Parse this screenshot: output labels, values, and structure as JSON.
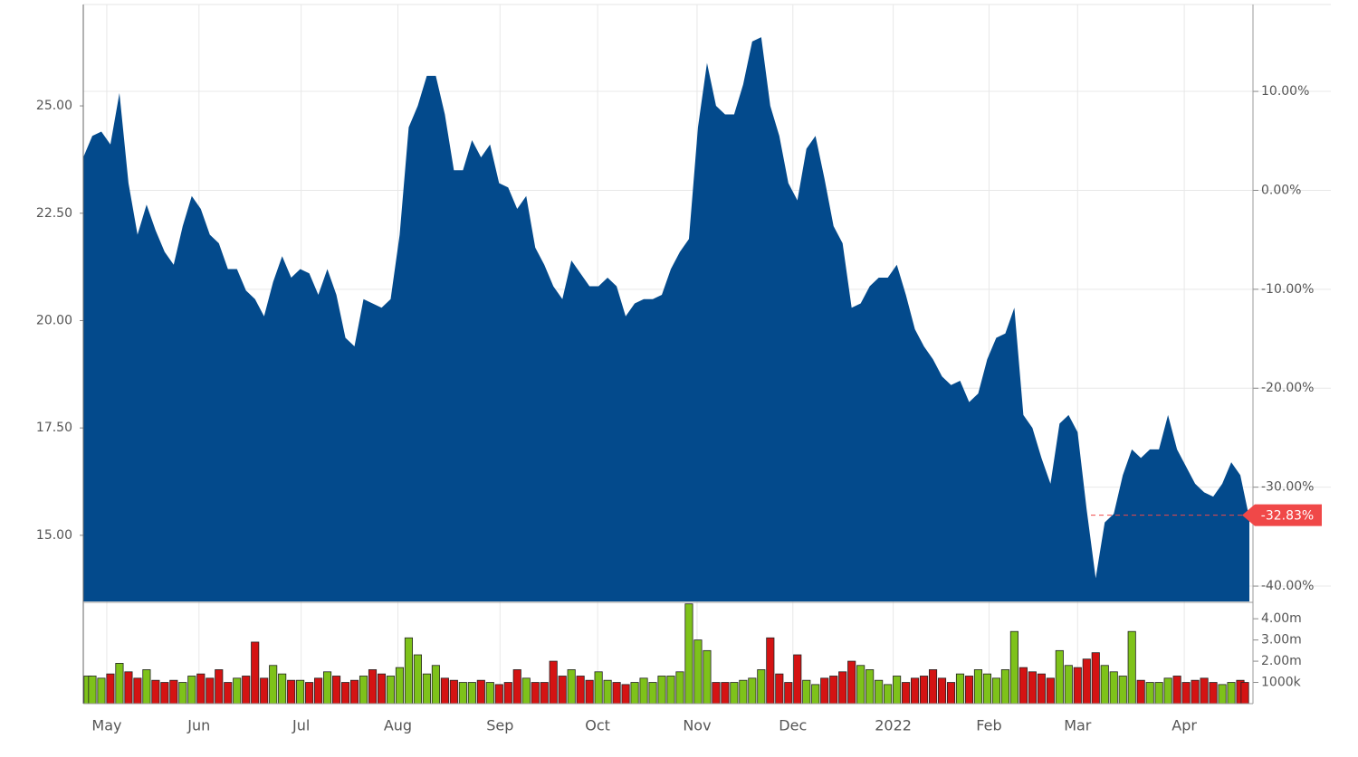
{
  "chart_data": [
    {
      "type": "area",
      "color": "#034a8c",
      "x": [
        0,
        1,
        2,
        3,
        4,
        5,
        6,
        7,
        8,
        9,
        10,
        11,
        12,
        13,
        14,
        15,
        16,
        17,
        18,
        19,
        20,
        21,
        22,
        23,
        24,
        25,
        26,
        27,
        28,
        29,
        30,
        31,
        32,
        33,
        34,
        35,
        36,
        37,
        38,
        39,
        40,
        41,
        42,
        43,
        44,
        45,
        46,
        47,
        48,
        49,
        50,
        51,
        52,
        53,
        54,
        55,
        56,
        57,
        58,
        59,
        60,
        61,
        62,
        63,
        64,
        65,
        66,
        67,
        68,
        69,
        70,
        71,
        72,
        73,
        74,
        75,
        76,
        77,
        78,
        79,
        80,
        81,
        82,
        83,
        84,
        85,
        86,
        87,
        88,
        89,
        90,
        91,
        92,
        93,
        94,
        95,
        96,
        97,
        98,
        99,
        100,
        101,
        102,
        103,
        104,
        105,
        106,
        107,
        108,
        109,
        110,
        111,
        112,
        113,
        114,
        115,
        116,
        117,
        118,
        119,
        120,
        121,
        122,
        123,
        124,
        125,
        126,
        127,
        128,
        129
      ],
      "series": [
        {
          "values": [
            23.8,
            24.3,
            24.4,
            24.1,
            25.3,
            23.2,
            22.0,
            22.7,
            22.1,
            21.6,
            21.3,
            22.2,
            22.9,
            22.6,
            22.0,
            21.8,
            21.2,
            21.2,
            20.7,
            20.5,
            20.1,
            20.9,
            21.5,
            21.0,
            21.2,
            21.1,
            20.6,
            21.2,
            20.6,
            19.6,
            19.4,
            20.5,
            20.4,
            20.3,
            20.5,
            22.0,
            24.5,
            25.0,
            25.7,
            25.7,
            24.8,
            23.5,
            23.5,
            24.2,
            23.8,
            24.1,
            23.2,
            23.1,
            22.6,
            22.9,
            21.7,
            21.3,
            20.8,
            20.5,
            21.4,
            21.1,
            20.8,
            20.8,
            21.0,
            20.8,
            20.1,
            20.4,
            20.5,
            20.5,
            20.6,
            21.2,
            21.6,
            21.9,
            24.5,
            26.0,
            25.0,
            24.8,
            24.8,
            25.5,
            26.5,
            26.6,
            25.0,
            24.3,
            23.2,
            22.8,
            24.0,
            24.3,
            23.3,
            22.2,
            21.8,
            20.3,
            20.4,
            20.8,
            21.0,
            21.0,
            21.3,
            20.6,
            19.8,
            19.4,
            19.1,
            18.7,
            18.5,
            18.6,
            18.1,
            18.3,
            19.1,
            19.6,
            19.7,
            20.3,
            17.8,
            17.5,
            16.8,
            16.2,
            17.6,
            17.8,
            17.4,
            15.6,
            14.0,
            15.3,
            15.5,
            16.4,
            17.0,
            16.8,
            17.0,
            17.0,
            17.8,
            17.0,
            16.6,
            16.2,
            16.0,
            15.9,
            16.2,
            16.7,
            16.4,
            15.4
          ]
        }
      ],
      "xlim": [
        0,
        129
      ],
      "ylim": [
        13.46,
        27.36
      ],
      "yticks": [
        {
          "value": 15,
          "label": "15.00"
        },
        {
          "value": 17.5,
          "label": "17.50"
        },
        {
          "value": 20,
          "label": "20.00"
        },
        {
          "value": 22.5,
          "label": "22.50"
        },
        {
          "value": 25,
          "label": "25.00"
        }
      ],
      "y2lim": [
        -41.55,
        18.78
      ],
      "y2ticks": [
        {
          "value": 10,
          "label": "10.00%"
        },
        {
          "value": 0,
          "label": "0.00%"
        },
        {
          "value": -10,
          "label": "-10.00%"
        },
        {
          "value": -20,
          "label": "-20.00%"
        },
        {
          "value": -30,
          "label": "-30.00%"
        },
        {
          "value": -40,
          "label": "-40.00%"
        }
      ],
      "last_change": {
        "value": -32.83,
        "label": "-32.83%"
      },
      "grid": true
    },
    {
      "type": "bar",
      "up_color": "#7ec21a",
      "down_color": "#d41313",
      "x": [
        0,
        1,
        2,
        3,
        4,
        5,
        6,
        7,
        8,
        9,
        10,
        11,
        12,
        13,
        14,
        15,
        16,
        17,
        18,
        19,
        20,
        21,
        22,
        23,
        24,
        25,
        26,
        27,
        28,
        29,
        30,
        31,
        32,
        33,
        34,
        35,
        36,
        37,
        38,
        39,
        40,
        41,
        42,
        43,
        44,
        45,
        46,
        47,
        48,
        49,
        50,
        51,
        52,
        53,
        54,
        55,
        56,
        57,
        58,
        59,
        60,
        61,
        62,
        63,
        64,
        65,
        66,
        67,
        68,
        69,
        70,
        71,
        72,
        73,
        74,
        75,
        76,
        77,
        78,
        79,
        80,
        81,
        82,
        83,
        84,
        85,
        86,
        87,
        88,
        89,
        90,
        91,
        92,
        93,
        94,
        95,
        96,
        97,
        98,
        99,
        100,
        101,
        102,
        103,
        104,
        105,
        106,
        107,
        108,
        109,
        110,
        111,
        112,
        113,
        114,
        115,
        116,
        117,
        118,
        119,
        120,
        121,
        122,
        123,
        124,
        125,
        126,
        127,
        128,
        129
      ],
      "values": [
        1.3,
        1.3,
        1.2,
        1.4,
        1.9,
        1.5,
        1.2,
        1.6,
        1.1,
        1.0,
        1.1,
        1.0,
        1.3,
        1.4,
        1.2,
        1.6,
        1.0,
        1.2,
        1.3,
        2.9,
        1.2,
        1.8,
        1.4,
        1.1,
        1.1,
        1.0,
        1.2,
        1.5,
        1.3,
        1.0,
        1.1,
        1.3,
        1.6,
        1.4,
        1.3,
        1.7,
        3.1,
        2.3,
        1.4,
        1.8,
        1.2,
        1.1,
        1.0,
        1.0,
        1.1,
        1.0,
        0.9,
        1.0,
        1.6,
        1.2,
        1.0,
        1.0,
        2.0,
        1.3,
        1.6,
        1.3,
        1.1,
        1.5,
        1.1,
        1.0,
        0.9,
        1.0,
        1.2,
        1.0,
        1.3,
        1.3,
        1.5,
        4.7,
        3.0,
        2.5,
        1.0,
        1.0,
        1.0,
        1.1,
        1.2,
        1.6,
        3.1,
        1.4,
        1.0,
        2.3,
        1.1,
        0.9,
        1.2,
        1.3,
        1.5,
        2.0,
        1.8,
        1.6,
        1.1,
        0.9,
        1.3,
        1.0,
        1.2,
        1.3,
        1.6,
        1.2,
        1.0,
        1.4,
        1.3,
        1.6,
        1.4,
        1.2,
        1.6,
        3.4,
        1.7,
        1.5,
        1.4,
        1.2,
        2.5,
        1.8,
        1.7,
        2.1,
        2.4,
        1.8,
        1.5,
        1.3,
        3.4,
        1.1,
        1.0,
        1.0,
        1.2,
        1.3,
        1.0,
        1.1,
        1.2,
        1.0,
        0.9,
        1.0,
        1.1,
        1.0
      ],
      "xlim": [
        0,
        129
      ],
      "ylim": [
        0,
        4.73
      ],
      "yticks": [
        {
          "value": 4,
          "label": "4.00m"
        },
        {
          "value": 3,
          "label": "3.00m"
        },
        {
          "value": 2,
          "label": "2.00m"
        },
        {
          "value": 1,
          "label": "1000k"
        }
      ],
      "xticks": [
        {
          "value": 2.6,
          "label": "May"
        },
        {
          "value": 12.8,
          "label": "Jun"
        },
        {
          "value": 24.1,
          "label": "Jul"
        },
        {
          "value": 34.8,
          "label": "Aug"
        },
        {
          "value": 46.1,
          "label": "Sep"
        },
        {
          "value": 56.9,
          "label": "Oct"
        },
        {
          "value": 67.9,
          "label": "Nov"
        },
        {
          "value": 78.5,
          "label": "Dec"
        },
        {
          "value": 89.6,
          "label": "2022"
        },
        {
          "value": 100.2,
          "label": "Feb"
        },
        {
          "value": 110.0,
          "label": "Mar"
        },
        {
          "value": 121.8,
          "label": "Apr"
        }
      ]
    }
  ]
}
